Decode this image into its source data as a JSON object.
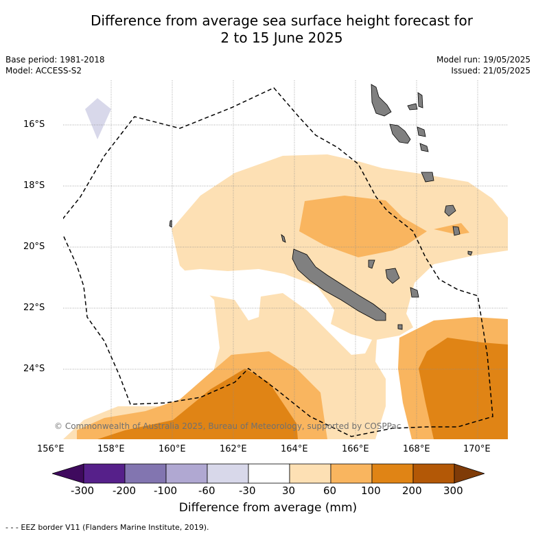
{
  "title_line1": "Difference from average sea surface height forecast for",
  "title_line2": "2 to 15 June 2025",
  "base_period": "Base period: 1981-2018",
  "model": "Model: ACCESS-S2",
  "model_run": "Model run: 19/05/2025",
  "issued": "Issued: 21/05/2025",
  "copyright": "© Commonwealth of Australia 2025, Bureau of Meteorology, supported by COSPPac",
  "latitude_labels": [
    "16°S",
    "18°S",
    "20°S",
    "22°S",
    "24°S"
  ],
  "longitude_labels": [
    "156°E",
    "158°E",
    "160°E",
    "162°E",
    "164°E",
    "166°E",
    "168°E",
    "170°E"
  ],
  "colorbar": {
    "title": "Difference from average (mm)",
    "tick_labels": [
      "-300",
      "-200",
      "-100",
      "-60",
      "-30",
      "30",
      "60",
      "100",
      "200",
      "300"
    ],
    "colors": [
      "#3f0a5e",
      "#56208a",
      "#8275b0",
      "#b0a8d2",
      "#d8d8ea",
      "#ffffff",
      "#fde0b4",
      "#f9b55f",
      "#e08415",
      "#b35806",
      "#7f3b08"
    ]
  },
  "legend_note": "- - - EEZ border V11 (Flanders Marine Institute, 2019)."
}
